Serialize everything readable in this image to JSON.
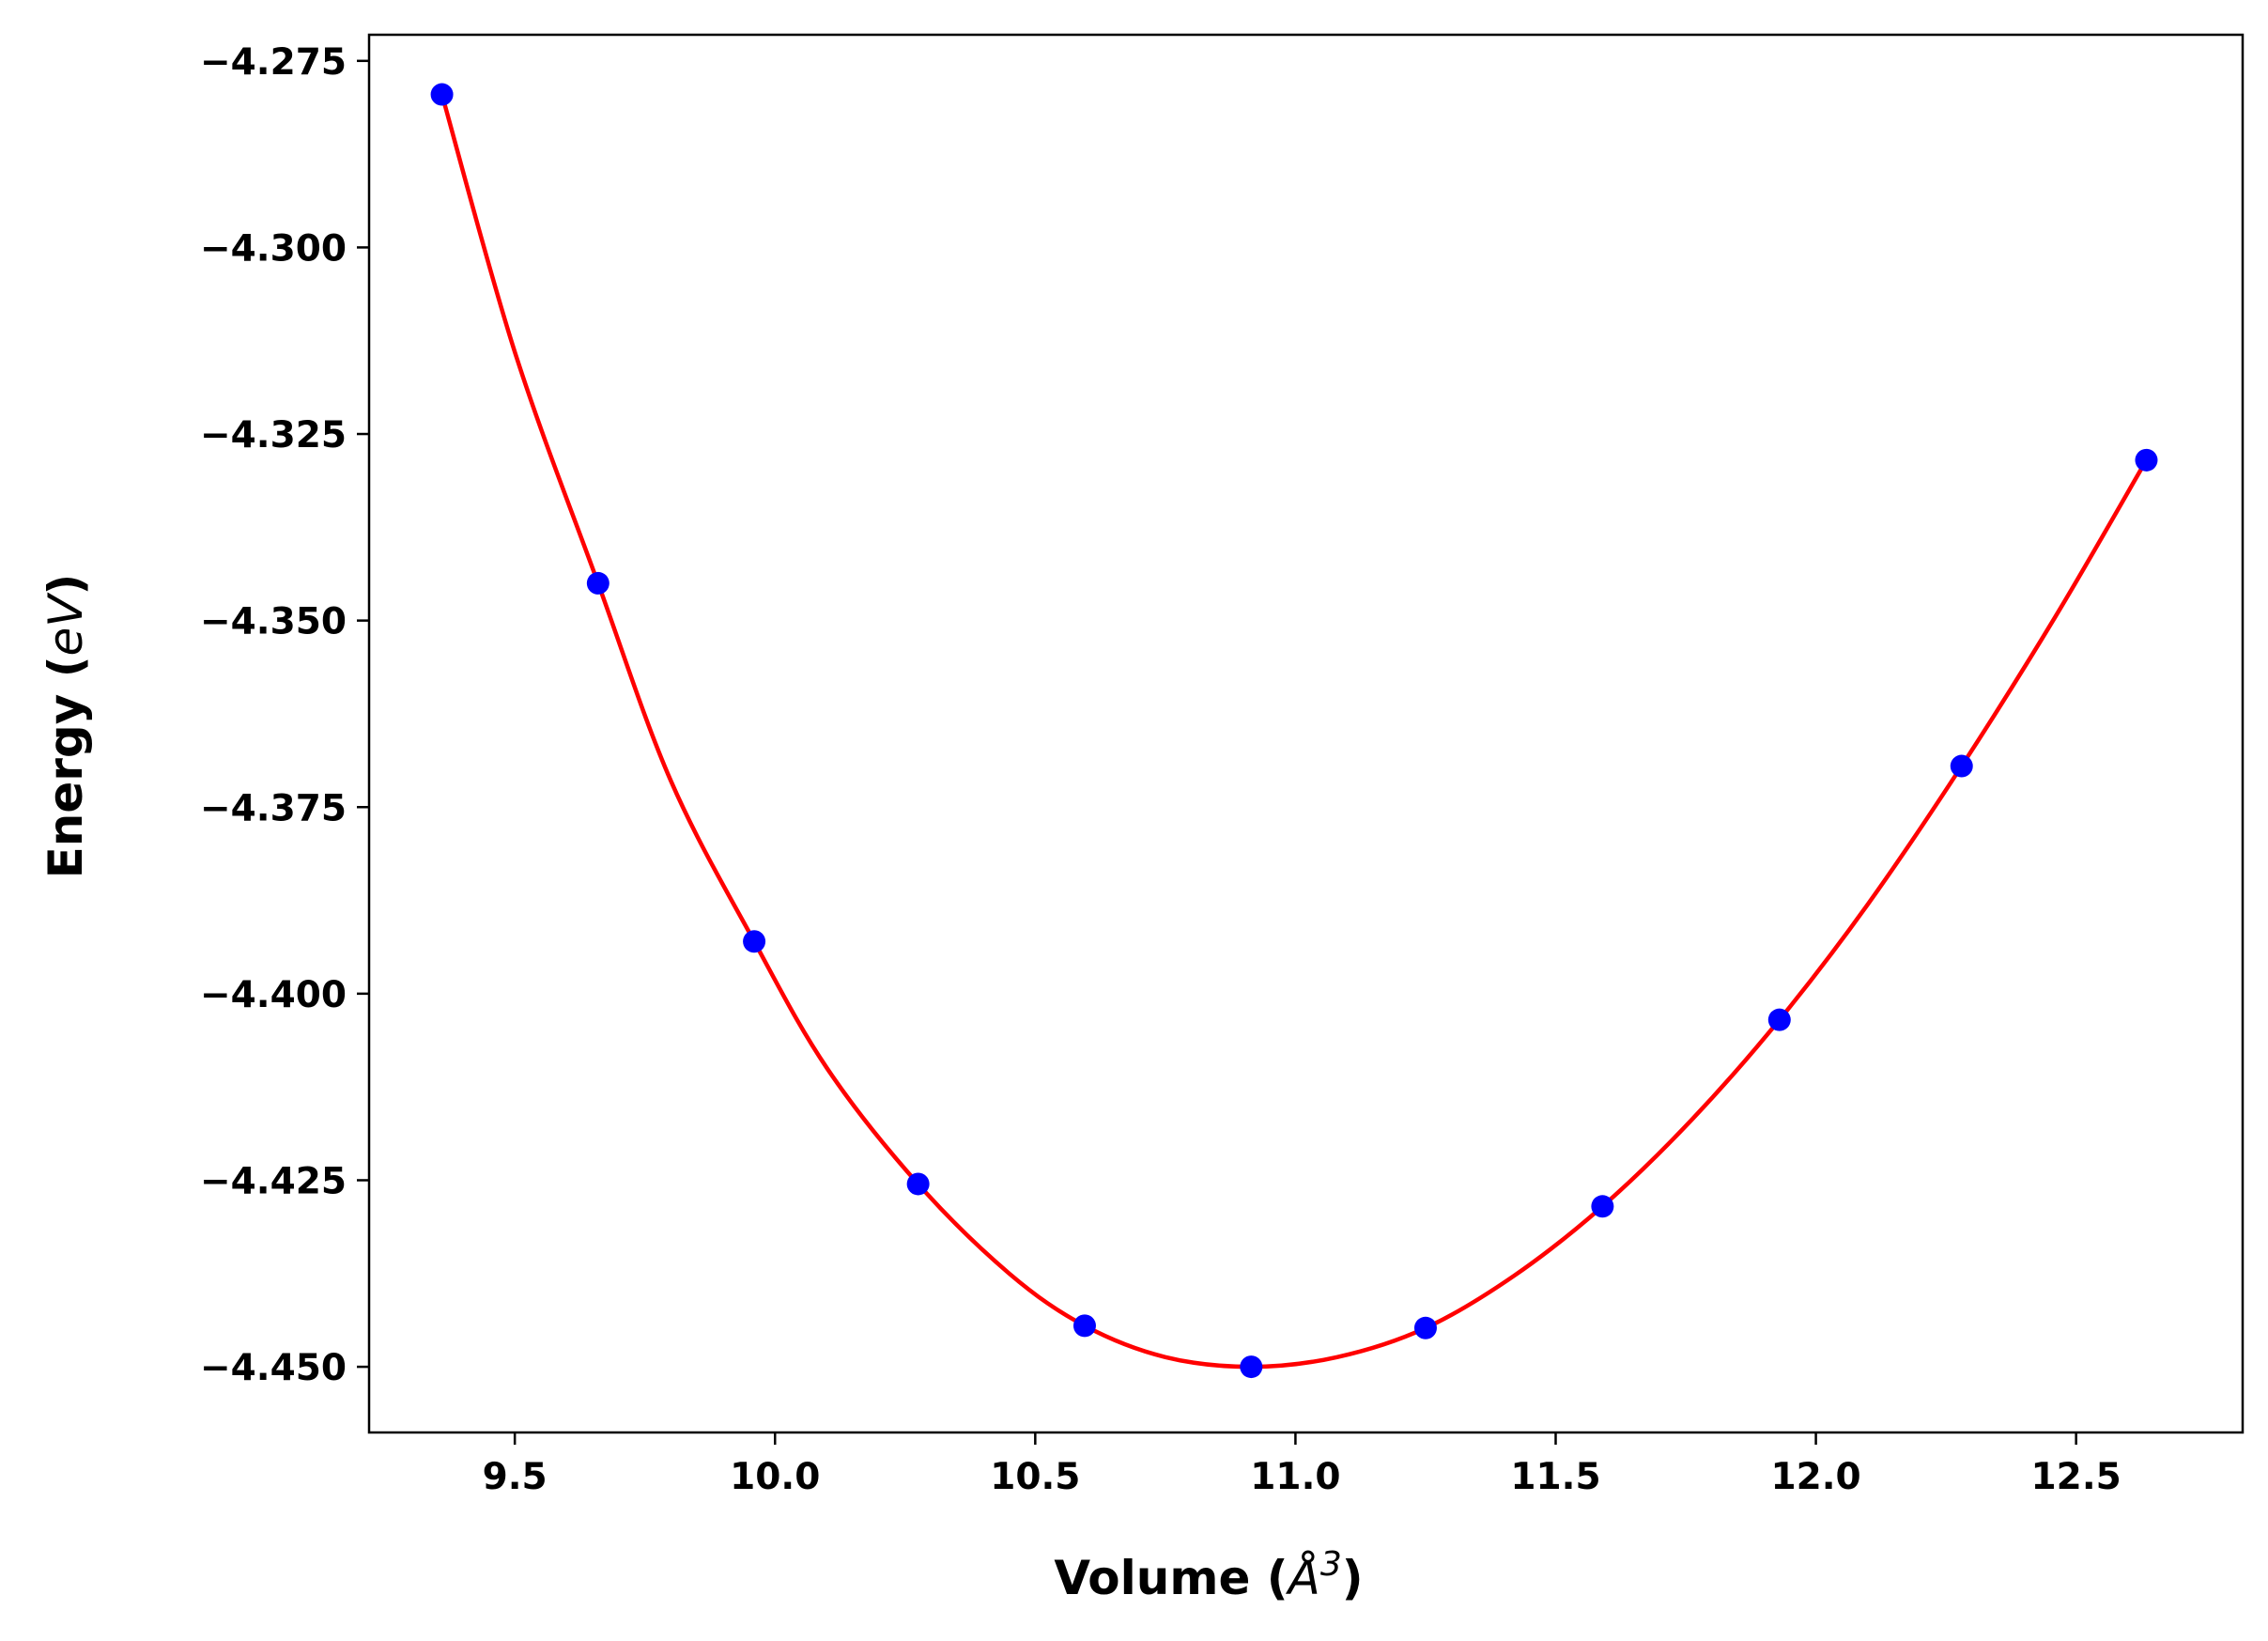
{
  "chart_data": {
    "type": "scatter",
    "xlabel": {
      "prefix": "Volume (",
      "unit": "Å",
      "superscript": "3",
      "suffix": ")"
    },
    "ylabel": {
      "prefix": "Energy (",
      "unit": "eV",
      "suffix": ")"
    },
    "xlim": [
      9.22,
      12.82
    ],
    "ylim": [
      -4.4588,
      -4.2715
    ],
    "x_ticks": [
      9.5,
      10.0,
      10.5,
      11.0,
      11.5,
      12.0,
      12.5
    ],
    "x_tick_labels": [
      "9.5",
      "10.0",
      "10.5",
      "11.0",
      "11.5",
      "12.0",
      "12.5"
    ],
    "y_ticks": [
      -4.275,
      -4.3,
      -4.325,
      -4.35,
      -4.375,
      -4.4,
      -4.425,
      -4.45
    ],
    "y_tick_labels": [
      "−4.275",
      "−4.300",
      "−4.325",
      "−4.350",
      "−4.375",
      "−4.400",
      "−4.425",
      "−4.450"
    ],
    "grid": false,
    "series": [
      {
        "kind": "points",
        "color": "#0000ff",
        "x": [
          9.36,
          9.66,
          9.96,
          10.275,
          10.595,
          10.915,
          11.25,
          11.59,
          11.93,
          12.28,
          12.635
        ],
        "y": [
          -4.2795,
          -4.345,
          -4.393,
          -4.4255,
          -4.4445,
          -4.45,
          -4.4448,
          -4.4285,
          -4.4035,
          -4.3695,
          -4.3285
        ]
      },
      {
        "kind": "fit-curve",
        "color": "#ff0000",
        "x": [
          9.36,
          9.5,
          9.66,
          9.8,
          9.96,
          10.1,
          10.275,
          10.45,
          10.595,
          10.75,
          10.915,
          11.08,
          11.25,
          11.42,
          11.59,
          11.76,
          11.93,
          12.1,
          12.28,
          12.46,
          12.635
        ],
        "y": [
          -4.2795,
          -4.314,
          -4.345,
          -4.3715,
          -4.393,
          -4.41,
          -4.4255,
          -4.4375,
          -4.4445,
          -4.4487,
          -4.45,
          -4.4487,
          -4.4448,
          -4.4378,
          -4.4285,
          -4.417,
          -4.4035,
          -4.388,
          -4.3695,
          -4.3495,
          -4.3285
        ]
      }
    ]
  }
}
